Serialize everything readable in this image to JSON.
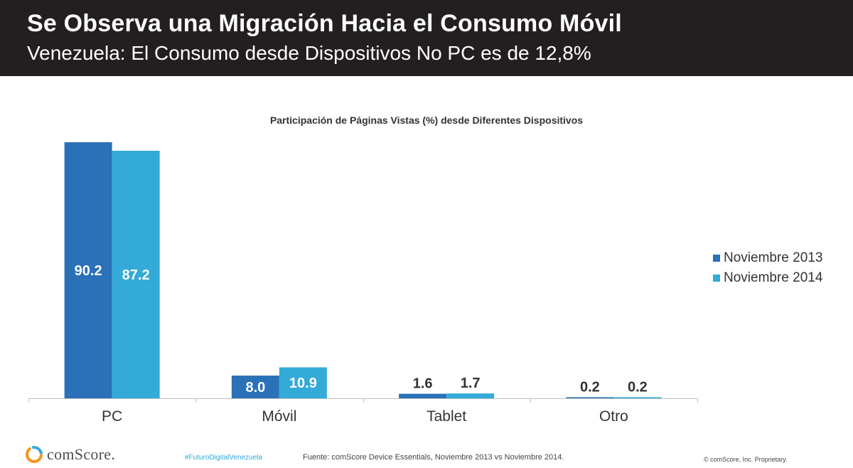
{
  "header": {
    "title": "Se Observa una Migración Hacia el Consumo Móvil",
    "subtitle": "Venezuela: El Consumo desde Dispositivos No PC es de 12,8%"
  },
  "chart_data": {
    "type": "bar",
    "title": "Participación de Páginas Vistas (%)  desde Diferentes Dispositivos",
    "xlabel": "",
    "ylabel": "",
    "ylim": [
      0,
      100
    ],
    "grid": false,
    "legend_position": "right",
    "categories": [
      "PC",
      "Móvil",
      "Tablet",
      "Otro"
    ],
    "series": [
      {
        "name": "Noviembre 2013",
        "values": [
          90.2,
          8.0,
          1.6,
          0.2
        ],
        "labels": [
          "90.2",
          "8.0",
          "1.6",
          "0.2"
        ],
        "color": "#2a71b8"
      },
      {
        "name": "Noviembre 2014",
        "values": [
          87.2,
          10.9,
          1.7,
          0.2
        ],
        "labels": [
          "87.2",
          "10.9",
          "1.7",
          "0.2"
        ],
        "color": "#33aad8"
      }
    ]
  },
  "footer": {
    "hashtag": "#FuturoDigitalVenezuela",
    "source": "Fuente:  comScore Device Essentials, Noviembre 2013 vs Noviembre 2014.",
    "copyright": "© comScore, Inc. Proprietary.",
    "logo_text": "comScore."
  },
  "colors": {
    "header_bg": "#231f20",
    "series_2013": "#2a71b8",
    "series_2014": "#33aad8",
    "hashtag": "#31a9d6"
  }
}
